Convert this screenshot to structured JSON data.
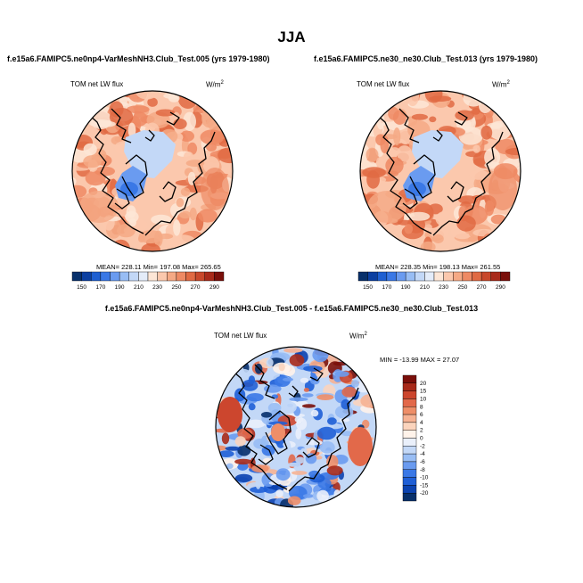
{
  "title": "JJA",
  "palette": {
    "main": [
      "#08306b",
      "#0b3fa1",
      "#1e5fd1",
      "#3a78e6",
      "#6a9bf0",
      "#98bdf4",
      "#c3d8f7",
      "#e4ecf9",
      "#fde6d6",
      "#fbc8ad",
      "#f5a985",
      "#ee8a64",
      "#e06a43",
      "#c8482b",
      "#a82a1a",
      "#7a0f0a"
    ],
    "diff": [
      "#08306b",
      "#0c43b0",
      "#1f5fd6",
      "#3a78e6",
      "#6a9bf0",
      "#98bdf4",
      "#c3d8f7",
      "#eaf0fb",
      "#fff3ea",
      "#fbd4bd",
      "#f6b293",
      "#ee8e68",
      "#e2694a",
      "#cc462e",
      "#a82a1a",
      "#7a0f0a"
    ],
    "land_outline": "#000000"
  },
  "panels": [
    {
      "case_title": "f.e15a6.FAMIPC5.ne0np4-VarMeshNH3.Club_Test.005 (yrs 1979-1980)",
      "variable": "TOM net LW flux",
      "units": "W/m",
      "units_sup": "2",
      "stats": "MEAN= 228.11  Min= 197.08  Max= 265.65"
    },
    {
      "case_title": "f.e15a6.FAMIPC5.ne30_ne30.Club_Test.013 (yrs 1979-1980)",
      "variable": "TOM net LW flux",
      "units": "W/m",
      "units_sup": "2",
      "stats": "MEAN= 228.35  Min= 198.13  Max= 261.55"
    }
  ],
  "diff_panel": {
    "case_title": "f.e15a6.FAMIPC5.ne0np4-VarMeshNH3.Club_Test.005 - f.e15a6.FAMIPC5.ne30_ne30.Club_Test.013",
    "variable": "TOM net LW flux",
    "units": "W/m",
    "units_sup": "2",
    "stats": "MIN = -13.99  MAX =  27.07"
  },
  "chart_data": [
    {
      "type": "heatmap",
      "projection": "polar-stereographic-north",
      "title": "TOM net LW flux",
      "units": "W/m2",
      "colorbar_ticks": [
        150,
        170,
        190,
        210,
        230,
        250,
        270,
        290
      ],
      "mean": 228.11,
      "min": 197.08,
      "max": 265.65
    },
    {
      "type": "heatmap",
      "projection": "polar-stereographic-north",
      "title": "TOM net LW flux",
      "units": "W/m2",
      "colorbar_ticks": [
        150,
        170,
        190,
        210,
        230,
        250,
        270,
        290
      ],
      "mean": 228.35,
      "min": 198.13,
      "max": 261.55
    },
    {
      "type": "heatmap",
      "projection": "polar-stereographic-north",
      "title": "TOM net LW flux (difference)",
      "units": "W/m2",
      "colorbar_ticks": [
        20,
        15,
        10,
        8,
        6,
        4,
        2,
        0,
        -2,
        -4,
        -6,
        -8,
        -10,
        -15,
        -20
      ],
      "min": -13.99,
      "max": 27.07
    }
  ]
}
